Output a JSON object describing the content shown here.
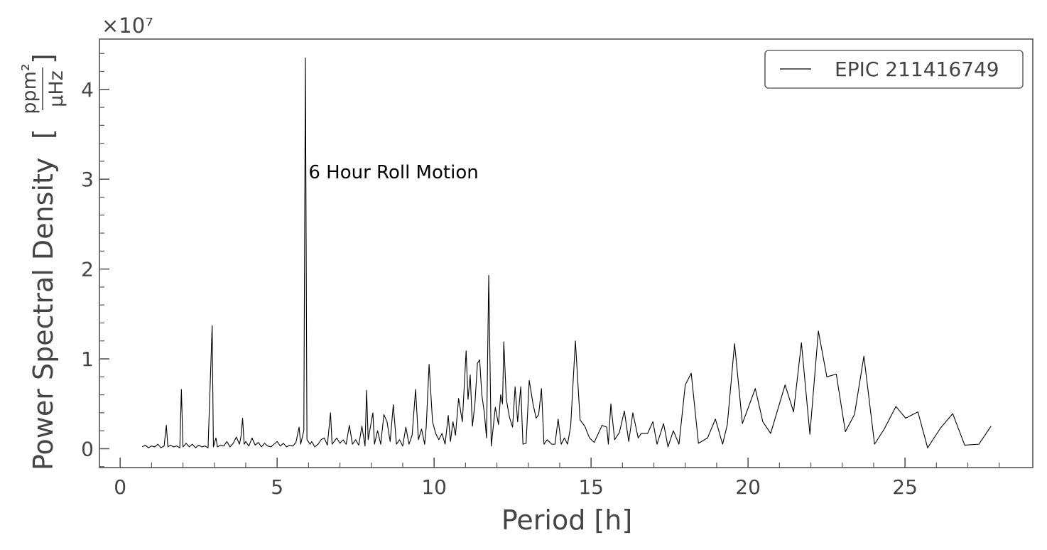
{
  "chart_data": {
    "type": "line",
    "xlabel": "Period [h]",
    "ylabel": "Power Spectral Density",
    "ylabel_unit": {
      "open": "[",
      "numerator": "ppm²",
      "denominator": "μHz",
      "close": "]"
    },
    "y_offset": "×10⁷",
    "annotation": {
      "text": "6 Hour Roll Motion",
      "x": 6.0,
      "y": 3.0
    },
    "xlim": [
      -0.66,
      29.07
    ],
    "ylim": [
      -0.21,
      4.56
    ],
    "xticks": [
      0,
      5,
      10,
      15,
      20,
      25
    ],
    "yticks": [
      0,
      1,
      2,
      3,
      4
    ],
    "xticks_minor": [
      1,
      2,
      3,
      4,
      6,
      7,
      8,
      9,
      11,
      12,
      13,
      14,
      16,
      17,
      18,
      19,
      21,
      22,
      23,
      24,
      26,
      27,
      28
    ],
    "yticks_minor": [
      -0.2,
      0.2,
      0.4,
      0.6,
      0.8,
      1.2,
      1.4,
      1.6,
      1.8,
      2.2,
      2.4,
      2.6,
      2.8,
      3.2,
      3.4,
      3.6,
      3.8,
      4.2,
      4.4
    ],
    "legend": "upper right",
    "x": [
      0.7,
      0.8,
      0.9,
      1.0,
      1.1,
      1.2,
      1.3,
      1.4,
      1.47,
      1.52,
      1.6,
      1.7,
      1.8,
      1.9,
      1.95,
      2.0,
      2.1,
      2.2,
      2.3,
      2.4,
      2.5,
      2.6,
      2.7,
      2.8,
      2.93,
      2.97,
      3.05,
      3.1,
      3.2,
      3.3,
      3.4,
      3.5,
      3.6,
      3.7,
      3.8,
      3.85,
      3.9,
      3.95,
      4.0,
      4.1,
      4.2,
      4.3,
      4.4,
      4.5,
      4.6,
      4.7,
      4.8,
      4.9,
      5.0,
      5.1,
      5.2,
      5.3,
      5.4,
      5.5,
      5.6,
      5.7,
      5.75,
      5.85,
      5.9,
      5.95,
      6.05,
      6.1,
      6.2,
      6.3,
      6.4,
      6.5,
      6.6,
      6.7,
      6.75,
      6.9,
      7.0,
      7.1,
      7.2,
      7.3,
      7.4,
      7.5,
      7.6,
      7.7,
      7.8,
      7.85,
      7.9,
      8.0,
      8.05,
      8.1,
      8.2,
      8.3,
      8.4,
      8.5,
      8.6,
      8.7,
      8.8,
      8.9,
      9.0,
      9.1,
      9.2,
      9.3,
      9.41,
      9.5,
      9.6,
      9.7,
      9.75,
      9.84,
      9.95,
      10.05,
      10.15,
      10.25,
      10.35,
      10.45,
      10.52,
      10.6,
      10.68,
      10.78,
      10.9,
      11.02,
      11.08,
      11.15,
      11.22,
      11.3,
      11.38,
      11.45,
      11.52,
      11.6,
      11.67,
      11.74,
      11.82,
      11.95,
      12.05,
      12.12,
      12.18,
      12.22,
      12.3,
      12.4,
      12.5,
      12.58,
      12.66,
      12.76,
      12.83,
      12.93,
      13.03,
      13.15,
      13.25,
      13.33,
      13.42,
      13.5,
      13.6,
      13.75,
      13.85,
      13.95,
      14.05,
      14.15,
      14.25,
      14.35,
      14.5,
      14.65,
      14.8,
      14.95,
      15.1,
      15.35,
      15.5,
      15.55,
      15.63,
      15.75,
      15.9,
      16.06,
      16.2,
      16.33,
      16.5,
      16.6,
      16.8,
      16.97,
      17.1,
      17.31,
      17.45,
      17.62,
      17.8,
      18.0,
      18.19,
      18.42,
      18.71,
      18.96,
      19.19,
      19.34,
      19.57,
      19.82,
      20.23,
      20.47,
      20.72,
      21.18,
      21.45,
      21.7,
      21.97,
      22.24,
      22.51,
      22.81,
      23.1,
      23.39,
      23.69,
      24.03,
      24.34,
      24.71,
      25.02,
      25.41,
      25.72,
      26.13,
      26.52,
      26.9,
      27.35,
      27.74
    ],
    "series": [
      {
        "name": "EPIC 211416749",
        "color": "#000000",
        "values": [
          0.02,
          0.04,
          0.01,
          0.03,
          0.02,
          0.05,
          0.01,
          0.03,
          0.26,
          0.02,
          0.04,
          0.02,
          0.03,
          0.01,
          0.66,
          0.02,
          0.06,
          0.02,
          0.05,
          0.01,
          0.04,
          0.02,
          0.03,
          0.01,
          1.37,
          0.02,
          0.12,
          0.02,
          0.04,
          0.03,
          0.08,
          0.02,
          0.06,
          0.13,
          0.05,
          0.14,
          0.34,
          0.05,
          0.08,
          0.03,
          0.12,
          0.04,
          0.07,
          0.02,
          0.06,
          0.03,
          0.02,
          0.05,
          0.08,
          0.03,
          0.06,
          0.02,
          0.04,
          0.03,
          0.07,
          0.24,
          0.05,
          0.2,
          4.35,
          0.1,
          0.05,
          0.08,
          0.02,
          0.05,
          0.1,
          0.12,
          0.04,
          0.4,
          0.05,
          0.12,
          0.06,
          0.1,
          0.05,
          0.26,
          0.05,
          0.1,
          0.04,
          0.25,
          0.03,
          0.65,
          0.1,
          0.3,
          0.4,
          0.05,
          0.2,
          0.05,
          0.38,
          0.3,
          0.08,
          0.49,
          0.05,
          0.1,
          0.03,
          0.24,
          0.05,
          0.15,
          0.66,
          0.1,
          0.22,
          0.05,
          0.25,
          0.94,
          0.3,
          0.17,
          0.1,
          0.17,
          0.05,
          0.37,
          0.08,
          0.3,
          0.15,
          0.56,
          0.3,
          1.09,
          0.55,
          0.82,
          0.25,
          0.5,
          0.95,
          0.99,
          0.6,
          0.4,
          0.12,
          1.93,
          0.03,
          0.46,
          0.27,
          0.6,
          0.5,
          1.19,
          0.55,
          0.35,
          0.24,
          0.69,
          0.3,
          0.69,
          0.05,
          0.06,
          0.76,
          0.5,
          0.34,
          0.38,
          0.67,
          0.05,
          0.1,
          0.05,
          0.05,
          0.33,
          0.05,
          0.12,
          0.05,
          0.25,
          1.2,
          0.32,
          0.25,
          0.12,
          0.07,
          0.26,
          0.24,
          0.05,
          0.5,
          0.1,
          0.18,
          0.42,
          0.08,
          0.4,
          0.12,
          0.17,
          0.17,
          0.3,
          0.05,
          0.28,
          0.02,
          0.2,
          0.05,
          0.71,
          0.84,
          0.06,
          0.12,
          0.33,
          0.05,
          0.27,
          1.17,
          0.28,
          0.67,
          0.3,
          0.17,
          0.71,
          0.41,
          1.18,
          0.16,
          1.31,
          0.8,
          0.83,
          0.19,
          0.38,
          1.03,
          0.05,
          0.22,
          0.47,
          0.34,
          0.41,
          0.01,
          0.23,
          0.39,
          0.04,
          0.05,
          0.25
        ]
      }
    ]
  }
}
